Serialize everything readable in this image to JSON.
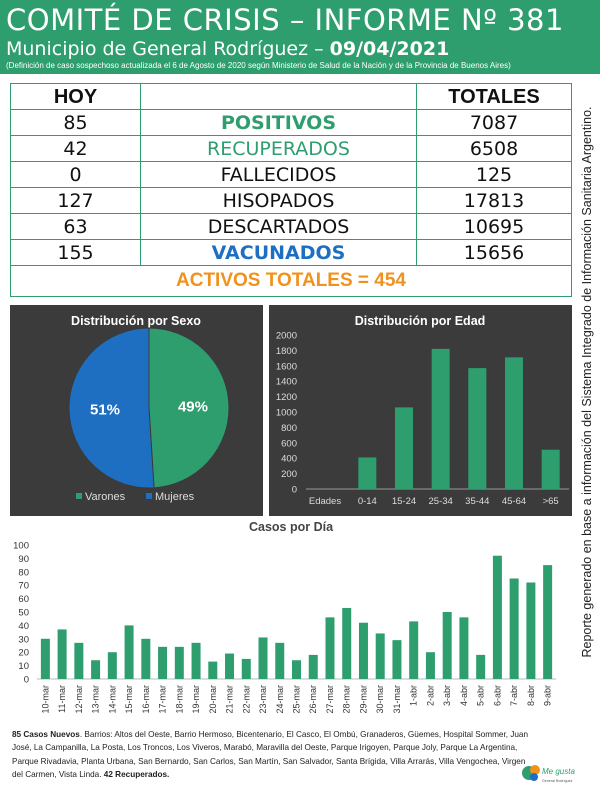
{
  "header": {
    "title": "COMITÉ DE CRISIS – INFORME Nº 381",
    "subtitle_prefix": "Municipio de General Rodríguez – ",
    "subtitle_date": "09/04/2021",
    "note": "(Definición de caso sospechoso actualizada el 6 de Agosto de 2020 según Ministerio de Salud de la Nación y de la Provincia de Buenos Aires)"
  },
  "stats": {
    "header_hoy": "HOY",
    "header_totales": "TOTALES",
    "rows": [
      {
        "hoy": "85",
        "label": "POSITIVOS",
        "total": "7087"
      },
      {
        "hoy": "42",
        "label": "RECUPERADOS",
        "total": "6508"
      },
      {
        "hoy": "0",
        "label": "FALLECIDOS",
        "total": "125"
      },
      {
        "hoy": "127",
        "label": "HISOPADOS",
        "total": "17813"
      },
      {
        "hoy": "63",
        "label": "DESCARTADOS",
        "total": "10695"
      },
      {
        "hoy": "155",
        "label": "VACUNADOS",
        "total": "15656"
      }
    ],
    "activos": "ACTIVOS TOTALES = 454"
  },
  "side_text": "Reporte generado en base a información del Sistema Integrado de Información Sanitaria Argentino.",
  "colors": {
    "green": "#2e9e6e",
    "blue": "#1e6fc2",
    "orange": "#f0921d",
    "panel_bg": "#3b3b3b",
    "pie_male": "#2e9e6e",
    "pie_female": "#1e6fc2"
  },
  "chart_data": [
    {
      "type": "pie",
      "title": "Distribución por Sexo",
      "labels": [
        "Varones",
        "Mujeres"
      ],
      "values": [
        49,
        51
      ],
      "value_labels": [
        "49%",
        "51%"
      ],
      "legend": "bottom"
    },
    {
      "type": "bar",
      "title": "Distribución por Edad",
      "xlabel": "Edades",
      "categories": [
        "0-14",
        "15-24",
        "25-34",
        "35-44",
        "45-64",
        ">65"
      ],
      "values": [
        410,
        1060,
        1820,
        1570,
        1710,
        510
      ],
      "ylim": [
        0,
        2000
      ],
      "yticks": [
        0,
        200,
        400,
        600,
        800,
        1000,
        1200,
        1400,
        1600,
        1800,
        2000
      ],
      "grid": false
    },
    {
      "type": "bar",
      "title": "Casos por Día",
      "categories": [
        "10-mar",
        "11-mar",
        "12-mar",
        "13-mar",
        "14-mar",
        "15-mar",
        "16-mar",
        "17-mar",
        "18-mar",
        "19-mar",
        "20-mar",
        "21-mar",
        "22-mar",
        "23-mar",
        "24-mar",
        "25-mar",
        "26-mar",
        "27-mar",
        "28-mar",
        "29-mar",
        "30-mar",
        "31-mar",
        "1-abr",
        "2-abr",
        "3-abr",
        "4-abr",
        "5-abr",
        "6-abr",
        "7-abr",
        "8-abr",
        "9-abr"
      ],
      "values": [
        30,
        37,
        27,
        14,
        20,
        40,
        30,
        24,
        24,
        27,
        13,
        19,
        15,
        31,
        27,
        14,
        18,
        46,
        53,
        42,
        34,
        29,
        43,
        20,
        50,
        46,
        18,
        92,
        75,
        72,
        85
      ],
      "ylim": [
        0,
        100
      ],
      "yticks": [
        0,
        10,
        20,
        30,
        40,
        50,
        60,
        70,
        80,
        90,
        100
      ],
      "grid": false
    }
  ],
  "footer": {
    "bold_lead": "85 Casos Nuevos",
    "text": ". Barrios: Altos del Oeste, Barrio Hermoso, Bicentenario, El Casco, El Ombú, Granaderos, Güemes, Hospital Sommer, Juan José, La Campanilla, La Posta, Los Troncos, Los Viveros, Marabó, Maravilla del Oeste, Parque Irigoyen, Parque Joly, Parque La Argentina, Parque Rivadavia, Planta Urbana, San Bernardo, San Carlos, San Martín, San Salvador, Santa Brígida, Villa Arrarás, Villa Vengochea, Virgen del Carmen, Vista Linda. ",
    "bold_tail": "42 Recuperados."
  },
  "logo": {
    "line1": "Me gusta",
    "line2": "General Rodríguez"
  }
}
